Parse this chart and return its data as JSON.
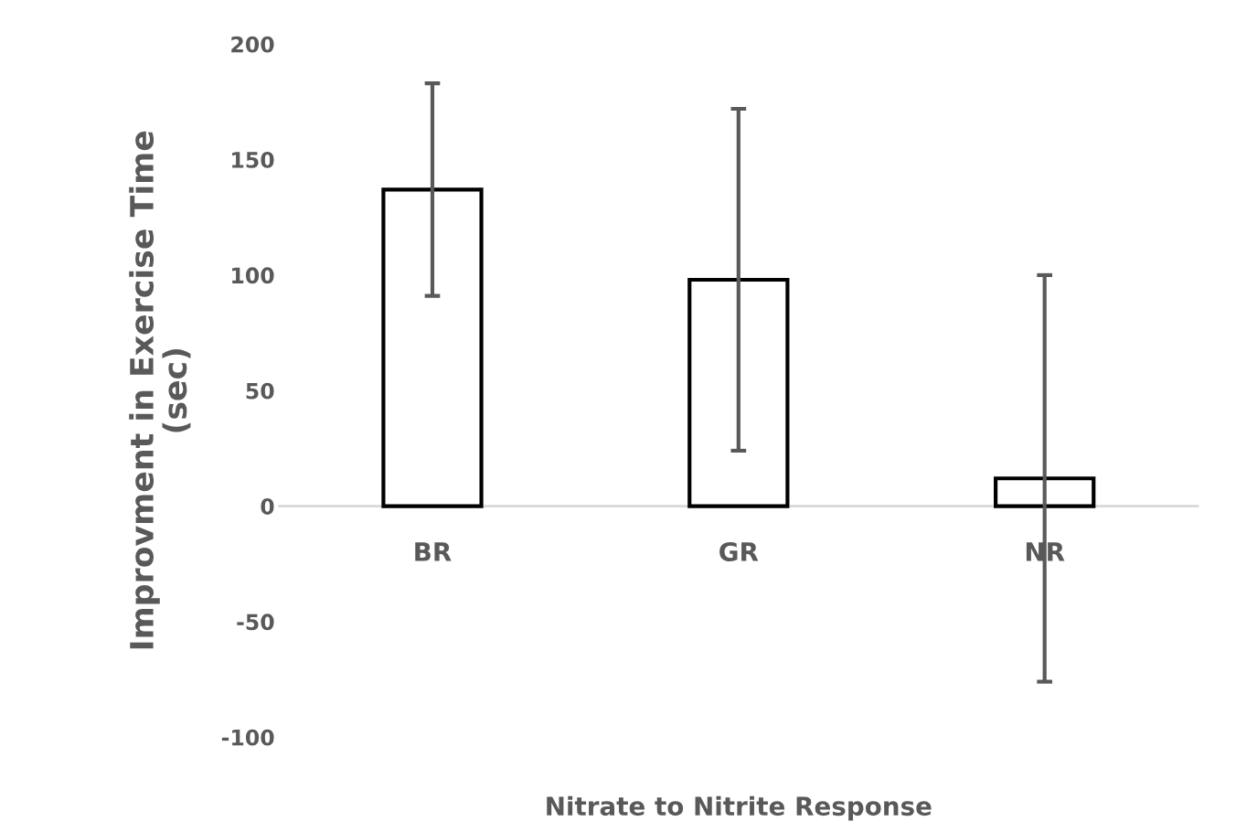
{
  "chart_data": {
    "type": "bar",
    "xlabel": "Nitrate to Nitrite Response",
    "ylabel": "Improvment in Exercise Time\n(sec)",
    "categories": [
      "BR",
      "GR",
      "NR"
    ],
    "values": [
      137,
      98,
      12
    ],
    "errors": [
      46,
      74,
      88
    ],
    "color": "#ffffff",
    "ylim": [
      -100,
      200
    ],
    "yticks": [
      -100,
      -50,
      0,
      50,
      100,
      150,
      200
    ],
    "grid": false,
    "legend": false
  }
}
